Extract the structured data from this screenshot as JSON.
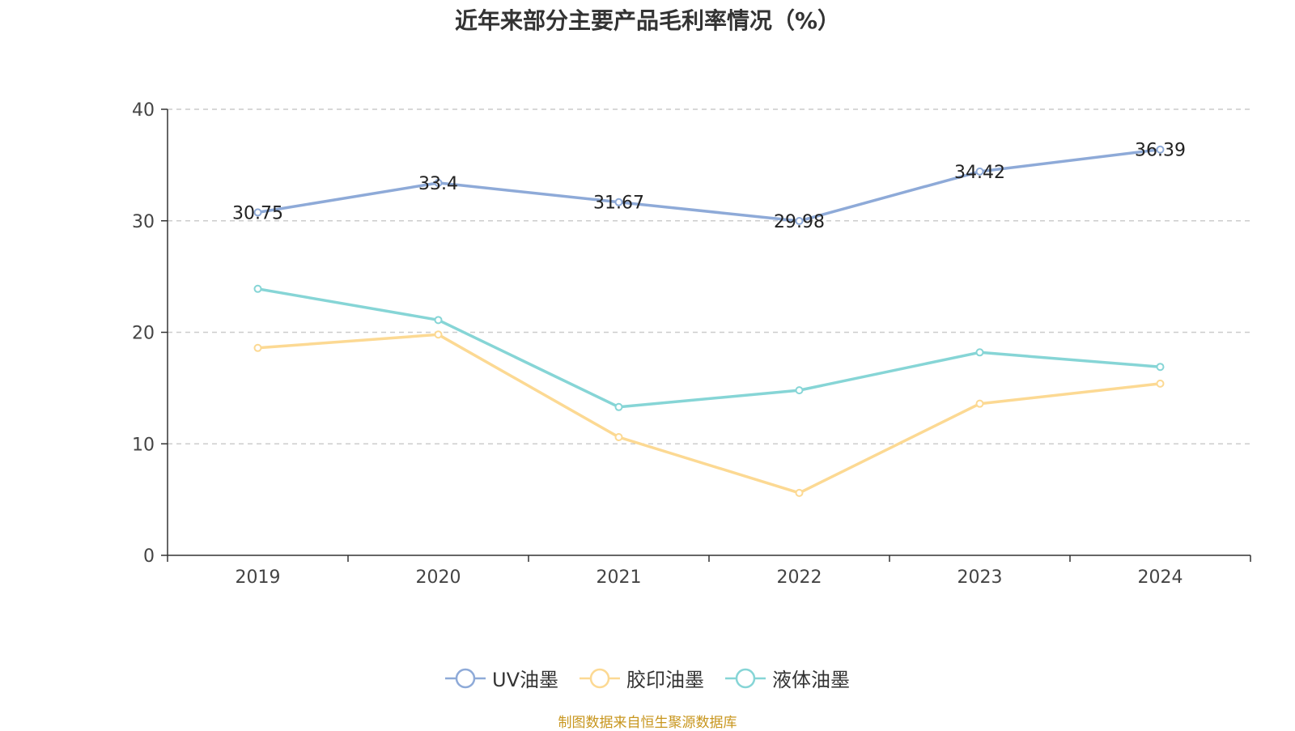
{
  "title": "近年来部分主要产品毛利率情况（%）",
  "source": "制图数据来自恒生聚源数据库",
  "colors": {
    "source_text": "#c8961e",
    "axis": "#333333",
    "grid": "#cccccc"
  },
  "chart_data": {
    "type": "line",
    "title": "近年来部分主要产品毛利率情况（%）",
    "categories": [
      "2019",
      "2020",
      "2021",
      "2022",
      "2023",
      "2024"
    ],
    "ylim": [
      0,
      40
    ],
    "yticks": [
      0,
      10,
      20,
      30,
      40
    ],
    "grid": "horizontal dashed",
    "legend_position": "bottom",
    "series": [
      {
        "name": "UV油墨",
        "color": "#8eaad8",
        "values": [
          30.75,
          33.4,
          31.67,
          29.98,
          34.42,
          36.39
        ],
        "labels": [
          "30.75",
          "33.4",
          "31.67",
          "29.98",
          "34.42",
          "36.39"
        ],
        "show_labels": true
      },
      {
        "name": "胶印油墨",
        "color": "#fcd993",
        "values": [
          18.6,
          19.8,
          10.6,
          5.6,
          13.6,
          15.4
        ],
        "show_labels": false
      },
      {
        "name": "液体油墨",
        "color": "#86d5d6",
        "values": [
          23.9,
          21.1,
          13.3,
          14.8,
          18.2,
          16.9
        ],
        "show_labels": false
      }
    ]
  }
}
